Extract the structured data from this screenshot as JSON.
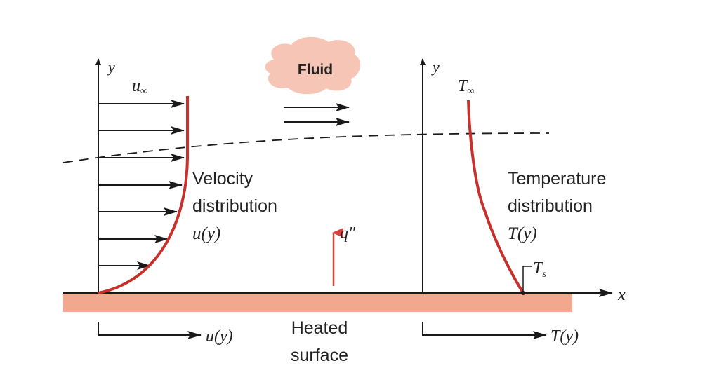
{
  "colors": {
    "profile": "#c8302c",
    "plate": "#f2a88f",
    "cloud": "#f7c5b5",
    "heat_arrow": "#d9433f",
    "ink": "#1a1a1a"
  },
  "labels": {
    "fluid": "Fluid",
    "y_left": "y",
    "y_right": "y",
    "u_inf": "u",
    "u_inf_sub": "∞",
    "t_inf": "T",
    "t_inf_sub": "∞",
    "velocity_line1": "Velocity",
    "velocity_line2": "distribution",
    "velocity_fn": "u(y)",
    "temperature_line1": "Temperature",
    "temperature_line2": "distribution",
    "temperature_fn": "T(y)",
    "heat_flux": "q″",
    "t_s": "T",
    "t_s_sub": "s",
    "x_axis": "x",
    "bottom_u": "u(y)",
    "bottom_t": "T(y)",
    "heated_line1": "Heated",
    "heated_line2": "surface"
  }
}
